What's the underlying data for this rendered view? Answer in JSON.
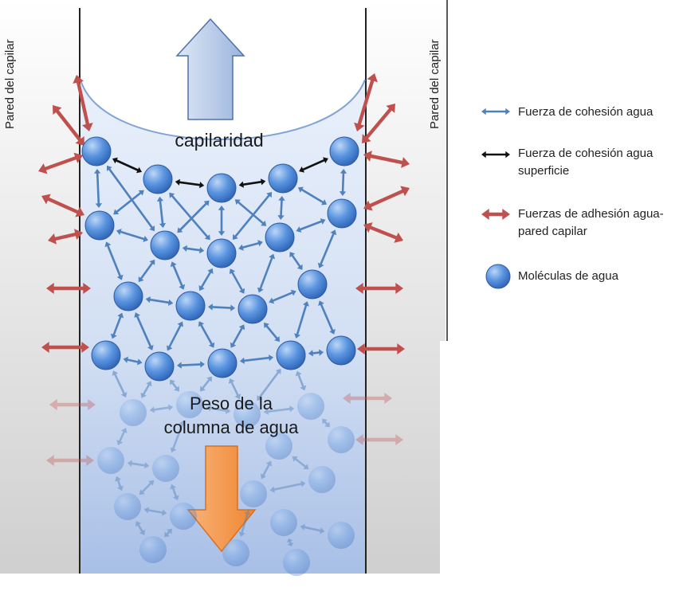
{
  "wall_label_left": "Pared del capilar",
  "wall_label_right": "Pared del capilar",
  "capillarity_label": "capilaridad",
  "weight_label_line1": "Peso de la",
  "weight_label_line2": "columna de agua",
  "legend": {
    "cohesion": "Fuerza de cohesión agua",
    "surface_cohesion_line1": "Fuerza de cohesión agua",
    "surface_cohesion_line2": "superficie",
    "adhesion_line1": "Fuerzas de adhesión agua-",
    "adhesion_line2": "pared capilar",
    "molecules": "Moléculas de agua"
  },
  "colors": {
    "cohesion_arrow": "#4f81bd",
    "surface_arrow": "#111111",
    "adhesion_arrow": "#c0504d",
    "molecule": "#3f7fd6",
    "gravity_arrow": "#f79646",
    "capillarity_arrow": "#a9c2e6",
    "wall": "#d4d4d4"
  }
}
